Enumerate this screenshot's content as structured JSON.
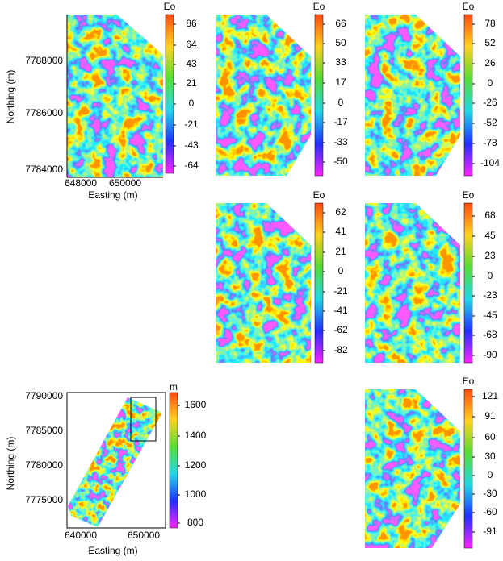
{
  "panels": [
    {
      "colorbar_title": "Eo",
      "colorbar_ticks": [
        86,
        64,
        43,
        21,
        0,
        -21,
        -43,
        -64
      ],
      "x_label": "Easting (m)",
      "y_label": "Northing (m)",
      "x_ticks": [
        648000,
        650000
      ],
      "y_ticks": [
        7788000,
        7786000,
        7784000
      ]
    },
    {
      "colorbar_title": "Eo",
      "colorbar_ticks": [
        66,
        50,
        33,
        17,
        0,
        -17,
        -33,
        -50
      ]
    },
    {
      "colorbar_title": "Eo",
      "colorbar_ticks": [
        78,
        52,
        26,
        0,
        -26,
        -52,
        -78,
        -104
      ]
    },
    {
      "colorbar_title": "Eo",
      "colorbar_ticks": [
        62,
        41,
        21,
        0,
        -21,
        -41,
        -62,
        -82
      ]
    },
    {
      "colorbar_title": "Eo",
      "colorbar_ticks": [
        68,
        45,
        23,
        0,
        -23,
        -45,
        -68,
        -90
      ]
    },
    {
      "colorbar_title": "Eo",
      "colorbar_ticks": [
        121,
        91,
        60,
        30,
        0,
        -30,
        -60,
        -91
      ]
    },
    {
      "colorbar_title": "m",
      "colorbar_ticks": [
        1600,
        1400,
        1200,
        1000,
        800
      ],
      "x_label": "Easting (m)",
      "y_label": "Northing (m)",
      "x_ticks": [
        640000,
        650000
      ],
      "y_ticks": [
        7790000,
        7785000,
        7780000,
        7775000
      ]
    }
  ]
}
